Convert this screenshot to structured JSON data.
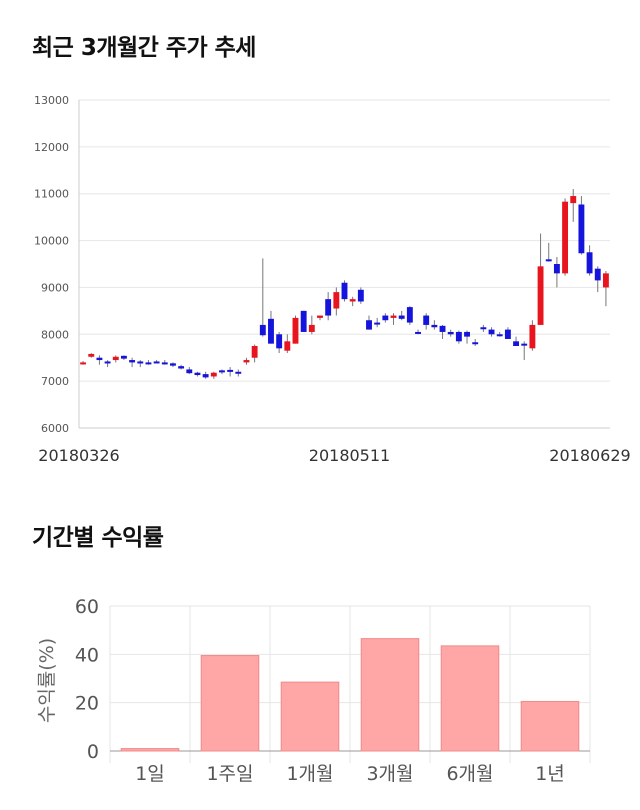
{
  "sections": {
    "price_title": "최근 3개월간 주가 추세",
    "returns_title": "기간별 수익률"
  },
  "colors": {
    "up": "#e8141e",
    "down": "#1414dc",
    "bar": "#ffa6a6",
    "bar_border": "#f08a8a",
    "grid": "#e6e6e6"
  },
  "chart_data": [
    {
      "type": "candlestick",
      "title": "최근 3개월간 주가 추세",
      "ylim": [
        6000,
        13000
      ],
      "yticks": [
        6000,
        7000,
        8000,
        9000,
        10000,
        11000,
        12000,
        13000
      ],
      "x_labels": [
        "20180326",
        "20180511",
        "20180629"
      ],
      "grid": true,
      "candles": [
        [
          7380,
          7430,
          7350,
          7400
        ],
        [
          7580,
          7600,
          7500,
          7520
        ],
        [
          7500,
          7550,
          7350,
          7450
        ],
        [
          7420,
          7450,
          7300,
          7400
        ],
        [
          7450,
          7550,
          7400,
          7520
        ],
        [
          7540,
          7550,
          7450,
          7480
        ],
        [
          7450,
          7500,
          7300,
          7400
        ],
        [
          7420,
          7450,
          7300,
          7400
        ],
        [
          7400,
          7450,
          7350,
          7400
        ],
        [
          7420,
          7450,
          7400,
          7400
        ],
        [
          7400,
          7450,
          7350,
          7380
        ],
        [
          7380,
          7400,
          7300,
          7330
        ],
        [
          7320,
          7350,
          7250,
          7270
        ],
        [
          7250,
          7300,
          7150,
          7170
        ],
        [
          7180,
          7200,
          7100,
          7130
        ],
        [
          7150,
          7200,
          7050,
          7080
        ],
        [
          7100,
          7200,
          7050,
          7180
        ],
        [
          7200,
          7250,
          7150,
          7230
        ],
        [
          7240,
          7300,
          7100,
          7200
        ],
        [
          7200,
          7250,
          7100,
          7180
        ],
        [
          7400,
          7500,
          7350,
          7450
        ],
        [
          7500,
          7780,
          7400,
          7750
        ],
        [
          8200,
          9620,
          7950,
          7980
        ],
        [
          8330,
          8500,
          7800,
          7800
        ],
        [
          8000,
          8050,
          7600,
          7700
        ],
        [
          7650,
          8000,
          7600,
          7850
        ],
        [
          7800,
          8400,
          7800,
          8350
        ],
        [
          8500,
          8500,
          8050,
          8050
        ],
        [
          8050,
          8400,
          8000,
          8200
        ],
        [
          8350,
          8400,
          8300,
          8400
        ],
        [
          8750,
          8900,
          8300,
          8400
        ],
        [
          8550,
          9000,
          8400,
          8900
        ],
        [
          9100,
          9150,
          8700,
          8750
        ],
        [
          8700,
          8800,
          8600,
          8750
        ],
        [
          8950,
          9000,
          8650,
          8700
        ],
        [
          8300,
          8400,
          8100,
          8100
        ],
        [
          8250,
          8350,
          8150,
          8250
        ],
        [
          8400,
          8450,
          8250,
          8300
        ],
        [
          8350,
          8450,
          8200,
          8400
        ],
        [
          8400,
          8500,
          8300,
          8330
        ],
        [
          8580,
          8600,
          8200,
          8250
        ],
        [
          8050,
          8100,
          8000,
          8050
        ],
        [
          8400,
          8450,
          8100,
          8200
        ],
        [
          8200,
          8300,
          8100,
          8150
        ],
        [
          8180,
          8200,
          7900,
          8050
        ],
        [
          8050,
          8100,
          7950,
          8000
        ],
        [
          8050,
          8080,
          7800,
          7850
        ],
        [
          8050,
          8080,
          7800,
          7950
        ],
        [
          7830,
          7900,
          7750,
          7800
        ],
        [
          8120,
          8200,
          8050,
          8150
        ],
        [
          8100,
          8150,
          7950,
          8000
        ],
        [
          8000,
          8050,
          7950,
          7980
        ],
        [
          8100,
          8150,
          7900,
          7900
        ],
        [
          7850,
          7950,
          7750,
          7750
        ],
        [
          7800,
          7850,
          7450,
          7780
        ],
        [
          7700,
          8300,
          7650,
          8200
        ],
        [
          8200,
          10150,
          8200,
          9450
        ],
        [
          9600,
          9950,
          9550,
          9580
        ],
        [
          9500,
          9650,
          9000,
          9300
        ],
        [
          9300,
          10900,
          9250,
          10830
        ],
        [
          10950,
          11100,
          10400,
          10800
        ],
        [
          10770,
          10950,
          9700,
          9730
        ],
        [
          9750,
          9900,
          9250,
          9300
        ],
        [
          9400,
          9450,
          8900,
          9150
        ],
        [
          9300,
          9350,
          8600,
          9000
        ]
      ],
      "candle_colors": [
        "up",
        "up",
        "down",
        "down",
        "up",
        "down",
        "down",
        "down",
        "down",
        "down",
        "down",
        "down",
        "down",
        "down",
        "down",
        "down",
        "up",
        "down",
        "down",
        "down",
        "up",
        "up",
        "down",
        "down",
        "down",
        "up",
        "up",
        "down",
        "up",
        "up",
        "down",
        "up",
        "down",
        "up",
        "down",
        "down",
        "down",
        "down",
        "up",
        "down",
        "down",
        "down",
        "down",
        "down",
        "down",
        "down",
        "down",
        "down",
        "down",
        "down",
        "down",
        "down",
        "down",
        "down",
        "down",
        "up",
        "up",
        "down",
        "down",
        "up",
        "up",
        "down",
        "down",
        "down",
        "up"
      ]
    },
    {
      "type": "bar",
      "title": "기간별 수익률",
      "ylabel": "수익률(%)",
      "ylim": [
        0,
        60
      ],
      "yticks": [
        0,
        20,
        40,
        60
      ],
      "grid": true,
      "categories": [
        "1일",
        "1주일",
        "1개월",
        "3개월",
        "6개월",
        "1년"
      ],
      "values": [
        1,
        39.5,
        28.5,
        46.5,
        43.5,
        20.5
      ]
    }
  ]
}
